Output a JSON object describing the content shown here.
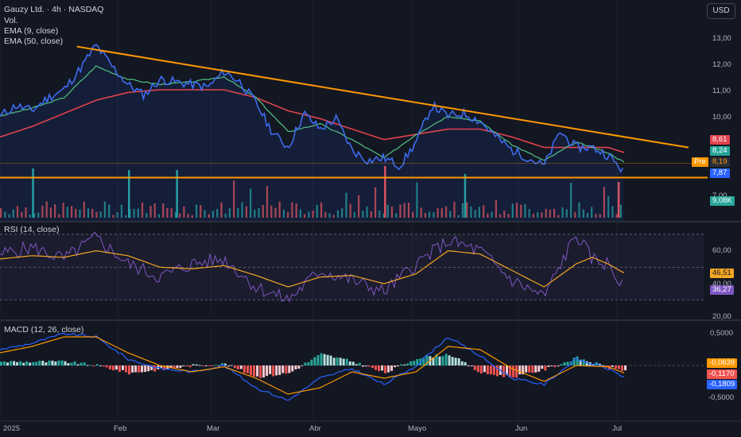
{
  "header": {
    "title": "Gauzy Ltd. · 4h · NASDAQ",
    "vol_label": "Vol.",
    "ema9_label": "EMA (9, close)",
    "ema50_label": "EMA (50, close)",
    "currency_button": "USD"
  },
  "indicators": {
    "rsi_label": "RSI (14, close)",
    "macd_label": "MACD (12, 26, close)"
  },
  "colors": {
    "background": "#131722",
    "price_line": "#3d6cf0",
    "ema9": "#4db67f",
    "ema50": "#e0434f",
    "trendline": "#ff9800",
    "rsi_line": "#7e57c2",
    "rsi_ma": "#f5a623",
    "vol_up": "#26a69a",
    "vol_down": "#ef5350",
    "macd_line": "#2962ff",
    "signal_line": "#ff9800"
  },
  "price_axis": {
    "ticks": [
      "13,00",
      "12,00",
      "11,00",
      "10,00",
      "7,00"
    ]
  },
  "rsi_axis": {
    "ticks": [
      "60,00",
      "40,00",
      "20,00"
    ]
  },
  "macd_axis": {
    "ticks": [
      "0,5000",
      "-0,5000"
    ]
  },
  "x_axis": {
    "labels": [
      "2025",
      "Feb",
      "Mar",
      "Abr",
      "Mayo",
      "Jun",
      "Jul"
    ]
  },
  "price_tags": {
    "ema50": "8,61",
    "ema9": "8,24",
    "pre_label": "Pre",
    "pre_value": "8,19",
    "last": "7,87",
    "volume": "9,08K"
  },
  "rsi_tags": {
    "ma": "46,51",
    "rsi": "36,27"
  },
  "macd_tags": {
    "hist": "-0,0639",
    "signal": "-0,1170",
    "macd": "-0,1809"
  },
  "chart_data": {
    "type": "line",
    "symbol": "Gauzy Ltd.",
    "timeframe": "4h",
    "exchange": "NASDAQ",
    "months": [
      "2025",
      "Feb",
      "Mar",
      "Abr",
      "Mayo",
      "Jun",
      "Jul"
    ],
    "price_ylim": [
      7.0,
      13.5
    ],
    "price_series": {
      "name": "Gauzy Ltd.",
      "x": [
        0,
        5,
        10,
        15,
        20,
        25,
        30,
        35,
        40,
        45,
        50,
        55,
        60,
        65,
        70,
        75,
        80,
        85,
        90,
        95,
        100,
        105,
        110,
        115,
        120,
        125,
        130,
        135,
        140,
        145,
        150,
        155,
        160,
        165,
        170,
        175,
        180,
        185,
        190,
        195
      ],
      "values": [
        10.0,
        10.4,
        10.2,
        10.7,
        11.0,
        11.8,
        12.7,
        11.9,
        11.2,
        10.8,
        11.4,
        11.3,
        11.2,
        11.1,
        11.7,
        11.3,
        10.5,
        9.4,
        8.8,
        10.1,
        9.5,
        9.9,
        8.7,
        8.3,
        8.4,
        8.1,
        9.0,
        10.4,
        10.0,
        10.1,
        9.8,
        9.2,
        8.7,
        8.4,
        8.1,
        9.4,
        8.8,
        8.8,
        8.5,
        7.87
      ]
    },
    "ema9_series": {
      "name": "EMA (9, close)",
      "x": [
        0,
        10,
        20,
        30,
        40,
        50,
        60,
        70,
        80,
        90,
        100,
        110,
        120,
        130,
        140,
        150,
        160,
        170,
        180,
        190,
        195
      ],
      "values": [
        10.0,
        10.3,
        10.7,
        11.9,
        11.4,
        11.2,
        11.3,
        11.5,
        10.7,
        9.4,
        9.7,
        9.1,
        8.4,
        9.3,
        10.0,
        9.8,
        8.9,
        8.3,
        9.0,
        8.6,
        8.24
      ]
    },
    "ema50_series": {
      "name": "EMA (50, close)",
      "x": [
        0,
        10,
        20,
        30,
        40,
        50,
        60,
        70,
        80,
        90,
        100,
        110,
        120,
        130,
        140,
        150,
        160,
        170,
        180,
        190,
        195
      ],
      "values": [
        9.2,
        9.6,
        10.1,
        10.6,
        10.9,
        11.0,
        11.0,
        11.0,
        10.7,
        10.2,
        9.9,
        9.5,
        9.1,
        9.3,
        9.5,
        9.5,
        9.2,
        8.8,
        8.8,
        8.8,
        8.61
      ]
    },
    "trendline": {
      "from": [
        24,
        12.65
      ],
      "to": [
        197,
        8.8
      ]
    },
    "support_level": 7.65,
    "rsi": {
      "ylim": [
        15,
        75
      ],
      "x": [
        0,
        10,
        20,
        30,
        40,
        50,
        60,
        70,
        80,
        90,
        100,
        110,
        120,
        130,
        140,
        150,
        160,
        170,
        180,
        185,
        190,
        195
      ],
      "values": [
        58,
        62,
        55,
        68,
        52,
        44,
        52,
        55,
        38,
        30,
        48,
        42,
        35,
        52,
        66,
        60,
        42,
        32,
        70,
        55,
        52,
        36.27
      ],
      "ma_values": [
        55,
        57,
        56,
        60,
        57,
        50,
        49,
        51,
        45,
        38,
        44,
        45,
        40,
        46,
        60,
        58,
        48,
        38,
        52,
        56,
        52,
        46.51
      ]
    },
    "macd": {
      "ylim": [
        -0.7,
        0.6
      ],
      "x": [
        0,
        10,
        20,
        30,
        40,
        50,
        60,
        70,
        80,
        90,
        100,
        110,
        120,
        130,
        140,
        150,
        160,
        170,
        180,
        190,
        195
      ],
      "macd_values": [
        0.25,
        0.35,
        0.5,
        0.45,
        0.1,
        -0.05,
        -0.1,
        0.0,
        -0.35,
        -0.55,
        -0.2,
        -0.05,
        -0.3,
        0.0,
        0.45,
        0.15,
        -0.2,
        -0.3,
        0.1,
        -0.05,
        -0.1809
      ],
      "signal_values": [
        0.2,
        0.3,
        0.45,
        0.45,
        0.2,
        0.0,
        -0.1,
        -0.02,
        -0.2,
        -0.45,
        -0.35,
        -0.1,
        -0.2,
        -0.1,
        0.3,
        0.25,
        -0.05,
        -0.25,
        0.0,
        -0.02,
        -0.117
      ],
      "hist_last": -0.0639
    }
  }
}
